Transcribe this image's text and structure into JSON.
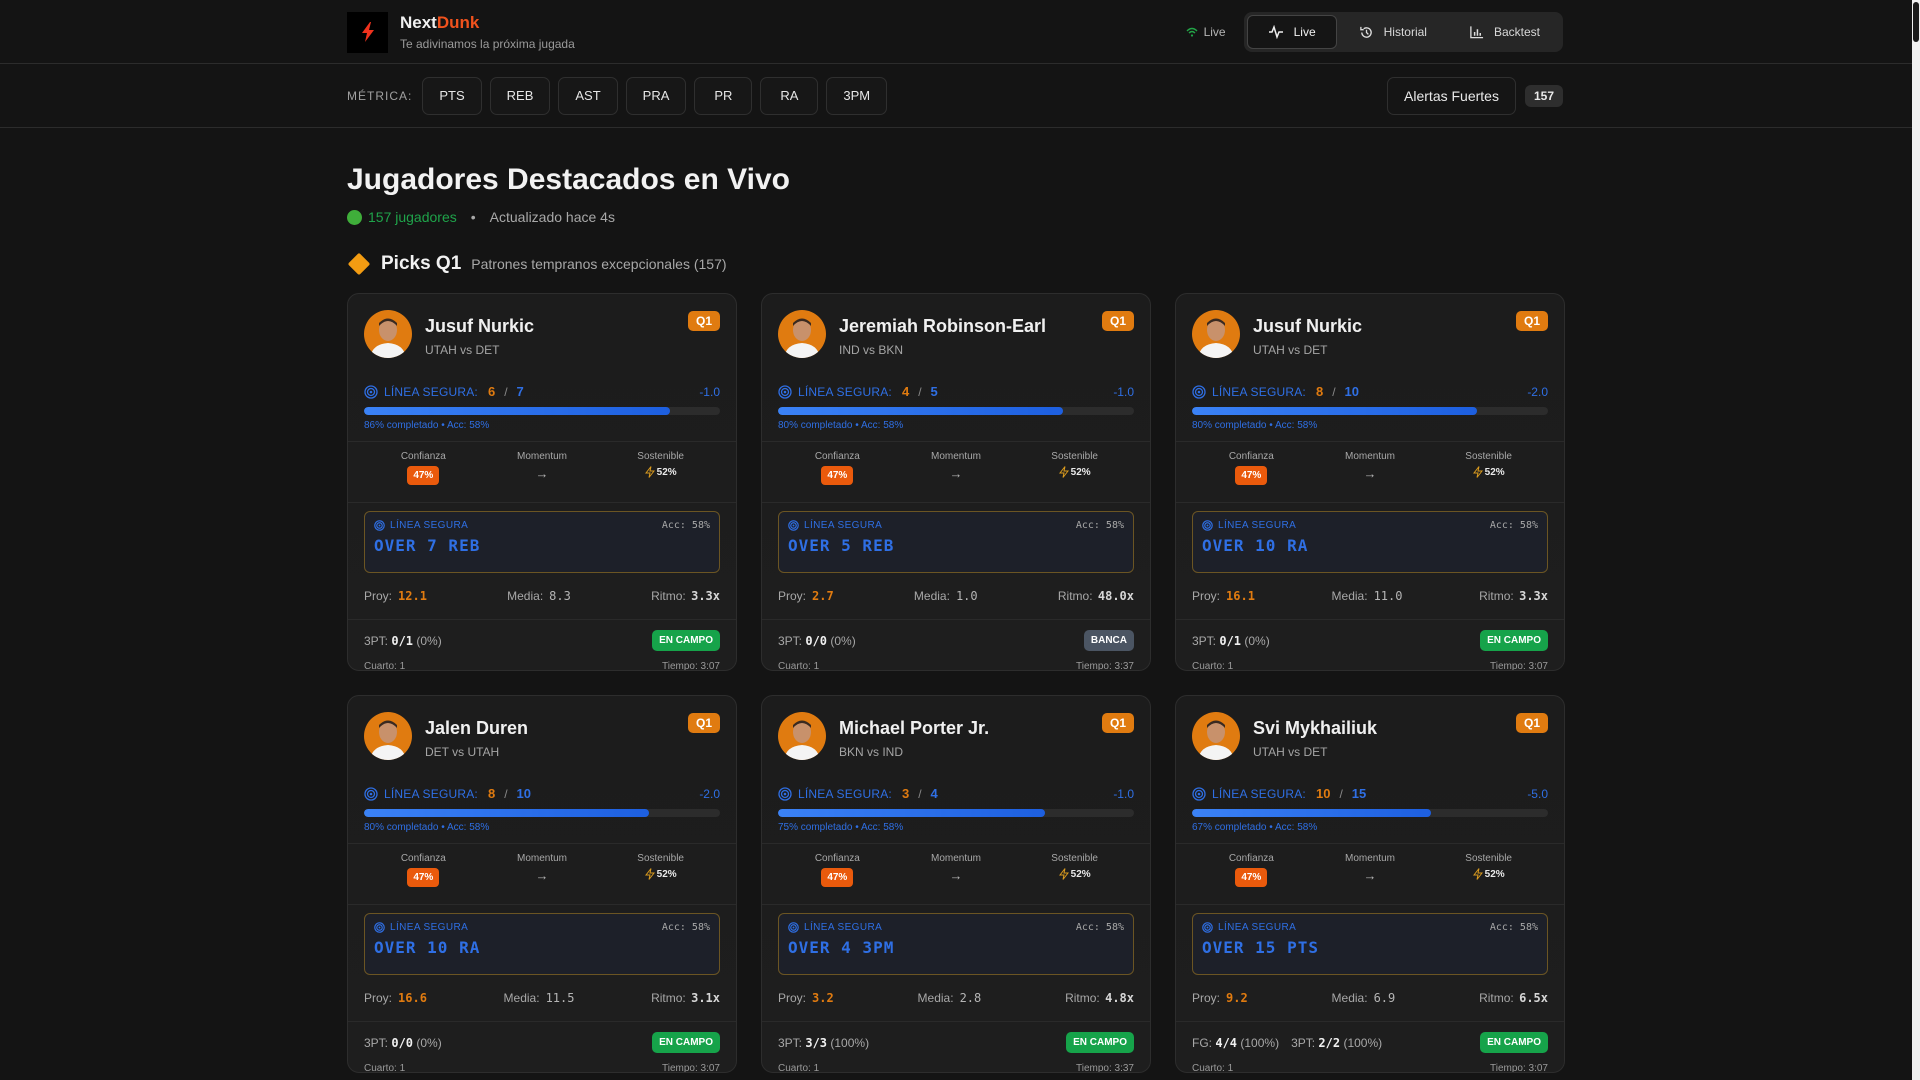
{
  "header": {
    "brand_main": "Next",
    "brand_accent": "Dunk",
    "tagline": "Te adivinamos la próxima jugada",
    "live_indicator": "Live",
    "nav": [
      {
        "label": "Live",
        "icon": "activity-icon",
        "active": true
      },
      {
        "label": "Historial",
        "icon": "history-icon",
        "active": false
      },
      {
        "label": "Backtest",
        "icon": "bar-chart-icon",
        "active": false
      }
    ]
  },
  "metric_bar": {
    "label": "MÉTRICA:",
    "metrics": [
      "PTS",
      "REB",
      "AST",
      "PRA",
      "PR",
      "RA",
      "3PM"
    ],
    "alerts_label": "Alertas Fuertes",
    "alerts_count": "157"
  },
  "page": {
    "title": "Jugadores Destacados en Vivo",
    "players_count": "157 jugadores",
    "separator": "•",
    "updated": "Actualizado hace 4s"
  },
  "section": {
    "title": "Picks Q1",
    "description": "Patrones tempranos excepcionales (157)"
  },
  "labels": {
    "line_label": "LÍNEA SEGURA:",
    "pick_label": "LÍNEA SEGURA",
    "confidence": "Confianza",
    "momentum": "Momentum",
    "sustainable": "Sostenible",
    "proj": "Proy:",
    "media": "Media:",
    "ritmo": "Ritmo:",
    "quarter_prefix": "Cuarto:",
    "time_prefix": "Tiempo:"
  },
  "cards": [
    {
      "name": "Jusuf Nurkic",
      "matchup": "UTAH vs DET",
      "badge": "Q1",
      "current": "6",
      "target": "7",
      "diff": "-1.0",
      "progress": 86,
      "caption": "86% completado • Acc: 58%",
      "confidence": "47%",
      "momentum": "→",
      "sustainable": "52%",
      "pick_acc": "Acc: 58%",
      "pick": "OVER 7 REB",
      "proj": "12.1",
      "media": "8.3",
      "ritmo": "3.3x",
      "shots": "3PT: ",
      "shots_val": "0/1",
      "shots_pct": "(0%)",
      "shots2": "",
      "shots2_val": "",
      "shots2_pct": "",
      "status": "EN CAMPO",
      "status_type": "green",
      "quarter": "Cuarto: 1",
      "time": "Tiempo: 3:07"
    },
    {
      "name": "Jeremiah Robinson-Earl",
      "matchup": "IND vs BKN",
      "badge": "Q1",
      "current": "4",
      "target": "5",
      "diff": "-1.0",
      "progress": 80,
      "caption": "80% completado • Acc: 58%",
      "confidence": "47%",
      "momentum": "→",
      "sustainable": "52%",
      "pick_acc": "Acc: 58%",
      "pick": "OVER 5 REB",
      "proj": "2.7",
      "media": "1.0",
      "ritmo": "48.0x",
      "shots": "3PT: ",
      "shots_val": "0/0",
      "shots_pct": "(0%)",
      "shots2": "",
      "shots2_val": "",
      "shots2_pct": "",
      "status": "BANCA",
      "status_type": "gray",
      "quarter": "Cuarto: 1",
      "time": "Tiempo: 3:37"
    },
    {
      "name": "Jusuf Nurkic",
      "matchup": "UTAH vs DET",
      "badge": "Q1",
      "current": "8",
      "target": "10",
      "diff": "-2.0",
      "progress": 80,
      "caption": "80% completado • Acc: 58%",
      "confidence": "47%",
      "momentum": "→",
      "sustainable": "52%",
      "pick_acc": "Acc: 58%",
      "pick": "OVER 10 RA",
      "proj": "16.1",
      "media": "11.0",
      "ritmo": "3.3x",
      "shots": "3PT: ",
      "shots_val": "0/1",
      "shots_pct": "(0%)",
      "shots2": "",
      "shots2_val": "",
      "shots2_pct": "",
      "status": "EN CAMPO",
      "status_type": "green",
      "quarter": "Cuarto: 1",
      "time": "Tiempo: 3:07"
    },
    {
      "name": "Jalen Duren",
      "matchup": "DET vs UTAH",
      "badge": "Q1",
      "current": "8",
      "target": "10",
      "diff": "-2.0",
      "progress": 80,
      "caption": "80% completado • Acc: 58%",
      "confidence": "47%",
      "momentum": "→",
      "sustainable": "52%",
      "pick_acc": "Acc: 58%",
      "pick": "OVER 10 RA",
      "proj": "16.6",
      "media": "11.5",
      "ritmo": "3.1x",
      "shots": "3PT: ",
      "shots_val": "0/0",
      "shots_pct": "(0%)",
      "shots2": "",
      "shots2_val": "",
      "shots2_pct": "",
      "status": "EN CAMPO",
      "status_type": "green",
      "quarter": "Cuarto: 1",
      "time": "Tiempo: 3:07"
    },
    {
      "name": "Michael Porter Jr.",
      "matchup": "BKN vs IND",
      "badge": "Q1",
      "current": "3",
      "target": "4",
      "diff": "-1.0",
      "progress": 75,
      "caption": "75% completado • Acc: 58%",
      "confidence": "47%",
      "momentum": "→",
      "sustainable": "52%",
      "pick_acc": "Acc: 58%",
      "pick": "OVER 4 3PM",
      "proj": "3.2",
      "media": "2.8",
      "ritmo": "4.8x",
      "shots": "3PT: ",
      "shots_val": "3/3",
      "shots_pct": "(100%)",
      "shots2": "",
      "shots2_val": "",
      "shots2_pct": "",
      "status": "EN CAMPO",
      "status_type": "green",
      "quarter": "Cuarto: 1",
      "time": "Tiempo: 3:37"
    },
    {
      "name": "Svi Mykhailiuk",
      "matchup": "UTAH vs DET",
      "badge": "Q1",
      "current": "10",
      "target": "15",
      "diff": "-5.0",
      "progress": 67,
      "caption": "67% completado • Acc: 58%",
      "confidence": "47%",
      "momentum": "→",
      "sustainable": "52%",
      "pick_acc": "Acc: 58%",
      "pick": "OVER 15 PTS",
      "proj": "9.2",
      "media": "6.9",
      "ritmo": "6.5x",
      "shots": "FG: ",
      "shots_val": "4/4",
      "shots_pct": "(100%)",
      "shots2": "3PT: ",
      "shots2_val": "2/2",
      "shots2_pct": "(100%)",
      "status": "EN CAMPO",
      "status_type": "green",
      "quarter": "Cuarto: 1",
      "time": "Tiempo: 3:07"
    }
  ],
  "colors": {
    "accent_orange": "#e07b10",
    "brand_red": "#f0521d",
    "line_blue": "#2f6fe4",
    "status_green": "#16a34a",
    "status_gray": "#4b5563",
    "confidence_orange": "#ea5a0c"
  }
}
